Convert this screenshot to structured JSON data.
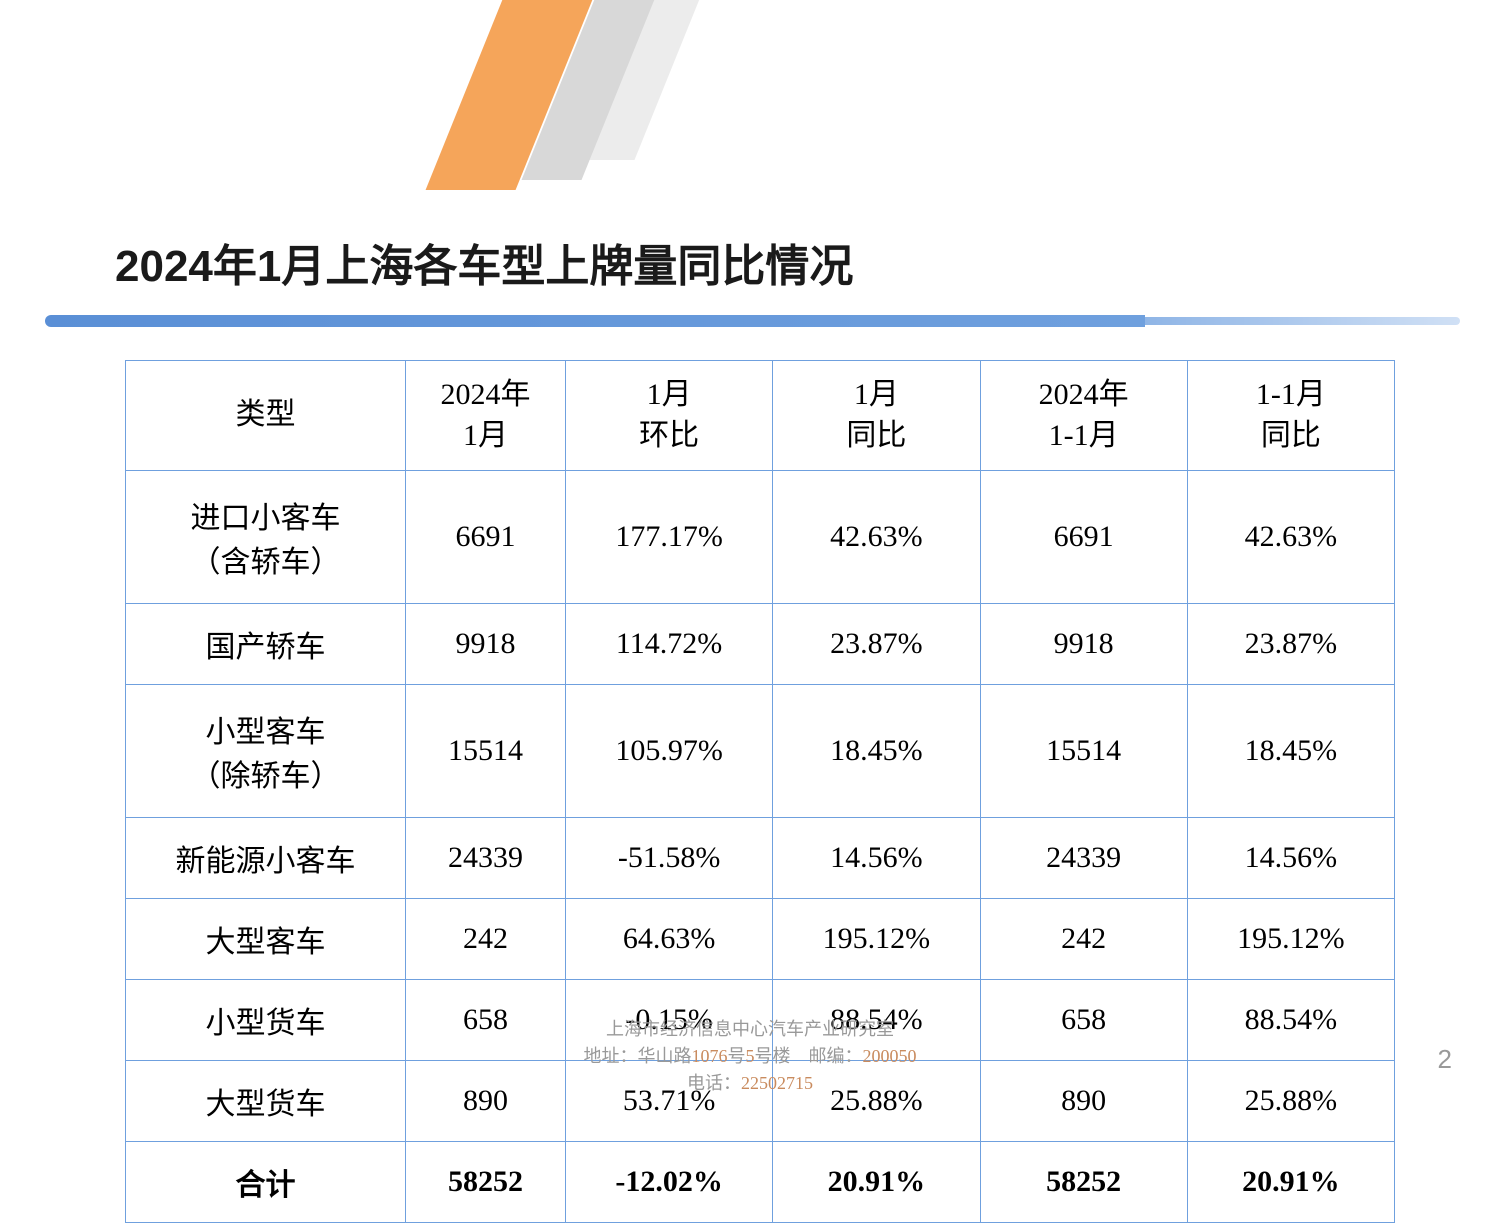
{
  "title": "2024年1月上海各车型上牌量同比情况",
  "columns": [
    "类型",
    "2024年\n1月",
    "1月\n环比",
    "1月\n同比",
    "2024年\n1-1月",
    "1-1月\n同比"
  ],
  "rows": [
    {
      "type": "进口小客车\n（含轿车）",
      "c1": "6691",
      "c2": "177.17%",
      "c3": "42.63%",
      "c4": "6691",
      "c5": "42.63%",
      "tall": true
    },
    {
      "type": "国产轿车",
      "c1": "9918",
      "c2": "114.72%",
      "c3": "23.87%",
      "c4": "9918",
      "c5": "23.87%"
    },
    {
      "type": "小型客车\n（除轿车）",
      "c1": "15514",
      "c2": "105.97%",
      "c3": "18.45%",
      "c4": "15514",
      "c5": "18.45%",
      "tall": true
    },
    {
      "type": "新能源小客车",
      "c1": "24339",
      "c2": "-51.58%",
      "c3": "14.56%",
      "c4": "24339",
      "c5": "14.56%"
    },
    {
      "type": "大型客车",
      "c1": "242",
      "c2": "64.63%",
      "c3": "195.12%",
      "c4": "242",
      "c5": "195.12%"
    },
    {
      "type": "小型货车",
      "c1": "658",
      "c2": "-0.15%",
      "c3": "88.54%",
      "c4": "658",
      "c5": "88.54%"
    },
    {
      "type": "大型货车",
      "c1": "890",
      "c2": "53.71%",
      "c3": "25.88%",
      "c4": "890",
      "c5": "25.88%"
    }
  ],
  "total": {
    "type": "合计",
    "c1": "58252",
    "c2": "-12.02%",
    "c3": "20.91%",
    "c4": "58252",
    "c5": "20.91%"
  },
  "footer": {
    "org": "上海市经济信息中心汽车产业研究室",
    "addr_pre": "地址：华山路",
    "addr_num": "1076",
    "addr_mid": "号",
    "addr_num2": "5",
    "addr_post": "号楼　邮编：",
    "zip": "200050",
    "tel_label": "电话：",
    "tel": "22502715"
  },
  "page_number": "2",
  "colors": {
    "border": "#6fa0de",
    "orange": "#f5a55a",
    "gray1": "#d8d8d8",
    "gray2": "#ececec",
    "footer_text": "#999999",
    "footer_num": "#c98b5e"
  }
}
